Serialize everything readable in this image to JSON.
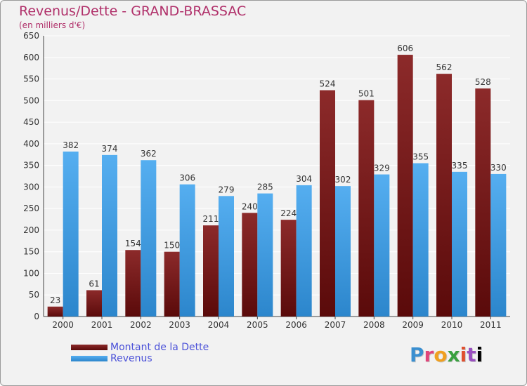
{
  "header": {
    "title": "Revenus/Dette - GRAND-BRASSAC",
    "subtitle": "(en milliers d'€)"
  },
  "legend": {
    "items": [
      {
        "label": "Montant de la Dette",
        "color": "#7a1a1a"
      },
      {
        "label": "Revenus",
        "color": "#3d9be0"
      }
    ]
  },
  "logo": {
    "text": "Proxiti"
  },
  "colors": {
    "title": "#b0306a",
    "dette_top": "#8c2a2a",
    "dette_bottom": "#5a0a0a",
    "revenus_top": "#55aef0",
    "revenus_bottom": "#2c86cc",
    "grid": "#ffffff",
    "background": "#f2f2f2"
  },
  "chart_data": {
    "type": "bar",
    "categories": [
      "2000",
      "2001",
      "2002",
      "2003",
      "2004",
      "2005",
      "2006",
      "2007",
      "2008",
      "2009",
      "2010",
      "2011"
    ],
    "series": [
      {
        "name": "Montant de la Dette",
        "values": [
          23,
          61,
          154,
          150,
          211,
          240,
          224,
          524,
          501,
          606,
          562,
          528
        ]
      },
      {
        "name": "Revenus",
        "values": [
          382,
          374,
          362,
          306,
          279,
          285,
          304,
          302,
          329,
          355,
          335,
          330
        ]
      }
    ],
    "title": "Revenus/Dette - GRAND-BRASSAC",
    "subtitle": "(en milliers d'€)",
    "ylim": [
      0,
      650
    ],
    "yticks": [
      0,
      50,
      100,
      150,
      200,
      250,
      300,
      350,
      400,
      450,
      500,
      550,
      600,
      650
    ],
    "grid": true,
    "legend_position": "bottom-left"
  }
}
